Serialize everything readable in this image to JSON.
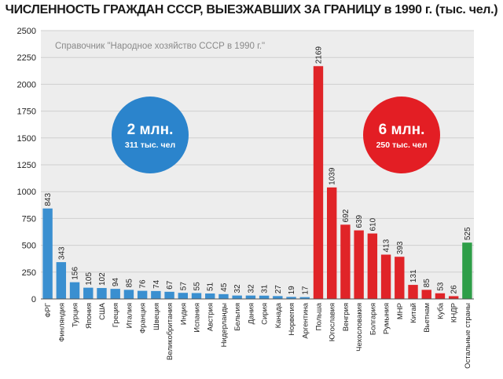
{
  "chart_data": {
    "type": "bar",
    "title": "ЧИСЛЕННОСТЬ ГРАЖДАН СССР, ВЫЕЗЖАВШИХ ЗА ГРАНИЦУ в 1990 г. (тыс. чел.)",
    "source_note": "Справочник \"Народное хозяйство СССР в 1990 г.\"",
    "ylim": [
      0,
      2500
    ],
    "yticks": [
      0,
      250,
      500,
      750,
      1000,
      1250,
      1500,
      1750,
      2000,
      2250,
      2500
    ],
    "grid": true,
    "categories": [
      "ФРГ",
      "Финляндия",
      "Турция",
      "Япония",
      "США",
      "Греция",
      "Италия",
      "Франция",
      "Швеция",
      "Великобритания",
      "Индия",
      "Испания",
      "Австрия",
      "Нидерланды",
      "Бельгия",
      "Дания",
      "Сирия",
      "Канада",
      "Норвегия",
      "Аргентина",
      "Польша",
      "Югославия",
      "Венгрия",
      "Чехословакия",
      "Болгария",
      "Румыния",
      "МНР",
      "Китай",
      "Вьетнам",
      "Куба",
      "КНДР",
      "Остальные страны"
    ],
    "values": [
      843,
      343,
      156,
      105,
      102,
      94,
      85,
      76,
      74,
      67,
      57,
      55,
      51,
      45,
      32,
      32,
      31,
      27,
      19,
      17,
      2169,
      1039,
      692,
      639,
      610,
      413,
      393,
      131,
      85,
      53,
      26,
      525
    ],
    "value_labels": [
      "843",
      "343",
      "156",
      "105",
      "102",
      "94",
      "85",
      "76",
      "74",
      "67",
      "57",
      "55",
      "51",
      "45",
      "32",
      "32",
      "31",
      "27",
      "19",
      "17",
      "2169",
      "1039",
      "692",
      "639",
      "610",
      "413",
      "393",
      "131",
      "85",
      "53",
      "26",
      "525"
    ],
    "groups": [
      "blue",
      "blue",
      "blue",
      "blue",
      "blue",
      "blue",
      "blue",
      "blue",
      "blue",
      "blue",
      "blue",
      "blue",
      "blue",
      "blue",
      "blue",
      "blue",
      "blue",
      "blue",
      "blue",
      "blue",
      "red",
      "red",
      "red",
      "red",
      "red",
      "red",
      "red",
      "red",
      "red",
      "red",
      "red",
      "green"
    ],
    "colors": {
      "blue": "#3a8fd0",
      "red": "#e02428",
      "green": "#2e9e48",
      "grid": "#cfcfcf",
      "plot_bg": "#ededed"
    },
    "annotations": [
      {
        "big": "2 млн.",
        "small": "311 тыс. чел",
        "color": "#2b84cc"
      },
      {
        "big": "6 млн.",
        "small": "250 тыс. чел",
        "color": "#e31e24"
      }
    ]
  }
}
